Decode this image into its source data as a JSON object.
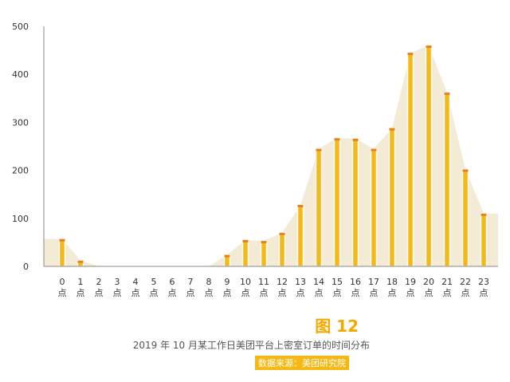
{
  "chart_data": {
    "type": "bar",
    "categories": [
      "0",
      "1",
      "2",
      "3",
      "4",
      "5",
      "6",
      "7",
      "8",
      "9",
      "10",
      "11",
      "12",
      "13",
      "14",
      "15",
      "16",
      "17",
      "18",
      "19",
      "20",
      "21",
      "22",
      "23"
    ],
    "category_suffix": "点",
    "values": [
      57,
      12,
      0,
      0,
      0,
      0,
      0,
      0,
      0,
      24,
      55,
      53,
      70,
      128,
      245,
      267,
      266,
      245,
      288,
      445,
      460,
      362,
      202,
      110
    ],
    "ylim": [
      0,
      500
    ],
    "yticks": [
      0,
      100,
      200,
      300,
      400,
      500
    ],
    "grid": false,
    "has_area_background": true
  },
  "figure_label": "图 12",
  "caption": "2019 年 10 月某工作日美团平台上密室订单的时间分布",
  "source": "数据来源：美团研究院",
  "colors": {
    "bar_fill": "#f5b915",
    "bar_stroke": "#ffffff",
    "bar_cap": "#e8811a",
    "area": "#f3ebd6",
    "axis": "#888888",
    "accent": "#f5a800",
    "source_bg": "#f5b915"
  }
}
